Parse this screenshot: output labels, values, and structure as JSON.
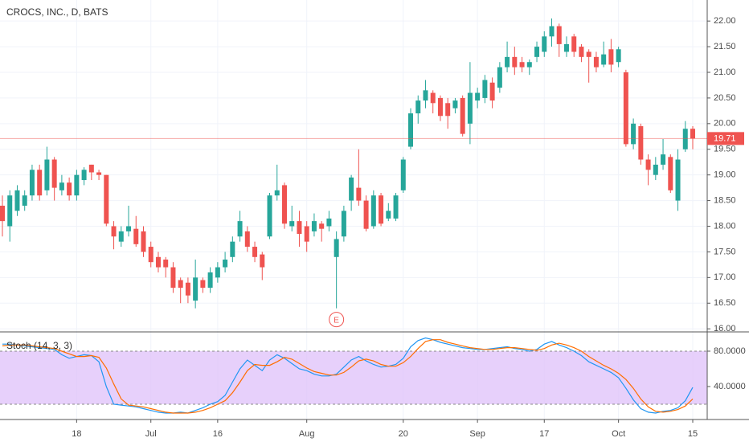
{
  "chart_data": [
    {
      "type": "candlestick",
      "title": "CROCS, INC., D, BATS",
      "categories": [
        null,
        null,
        null,
        null,
        null,
        null,
        null,
        null,
        null,
        null,
        "18",
        null,
        null,
        null,
        null,
        null,
        null,
        null,
        null,
        null,
        "Jul",
        null,
        null,
        null,
        null,
        null,
        null,
        null,
        null,
        "16",
        null,
        null,
        null,
        null,
        null,
        null,
        null,
        null,
        null,
        null,
        null,
        "Aug",
        null,
        null,
        null,
        null,
        null,
        null,
        null,
        null,
        null,
        null,
        null,
        null,
        "20",
        null,
        null,
        null,
        null,
        null,
        null,
        null,
        null,
        null,
        "Sep",
        null,
        null,
        null,
        null,
        null,
        null,
        null,
        null,
        "17",
        null,
        null,
        null,
        null,
        null,
        null,
        null,
        null,
        null,
        "Oct",
        null,
        null,
        null,
        null,
        null,
        null,
        null,
        null,
        null,
        "15"
      ],
      "open": [
        18.4,
        18.0,
        18.3,
        18.4,
        18.6,
        19.1,
        18.7,
        19.3,
        18.7,
        18.85,
        18.6,
        18.9,
        19.2,
        19.05,
        19.0,
        18.0,
        17.7,
        17.9,
        17.95,
        17.9,
        17.6,
        17.4,
        17.35,
        17.2,
        16.95,
        16.9,
        16.55,
        16.95,
        16.8,
        17.0,
        17.2,
        17.4,
        17.8,
        17.9,
        17.6,
        17.45,
        17.8,
        18.6,
        18.8,
        18.0,
        18.1,
        18.0,
        17.9,
        18.05,
        18.0,
        17.4,
        17.8,
        18.5,
        18.75,
        18.5,
        18.0,
        18.6,
        18.15,
        18.15,
        18.7,
        19.55,
        20.2,
        20.45,
        20.6,
        20.5,
        20.4,
        20.3,
        20.5,
        20.0,
        20.45,
        20.5,
        20.8,
        20.7,
        21.1,
        21.3,
        21.2,
        21.1,
        21.3,
        21.4,
        21.7,
        21.9,
        21.4,
        21.7,
        21.5,
        21.4,
        21.3,
        21.15,
        21.45,
        21.2,
        21.0,
        19.6,
        19.95,
        19.3,
        19.0,
        19.2,
        19.35,
        18.5,
        19.5,
        19.9
      ],
      "high": [
        18.6,
        18.7,
        18.8,
        18.7,
        19.2,
        19.2,
        19.55,
        19.35,
        19.0,
        18.95,
        19.1,
        19.15,
        19.2,
        19.1,
        19.0,
        18.1,
        18.0,
        18.4,
        18.2,
        18.0,
        17.7,
        17.5,
        17.4,
        17.3,
        17.0,
        17.0,
        17.35,
        17.0,
        17.2,
        17.3,
        17.5,
        17.8,
        18.3,
        18.0,
        17.7,
        17.5,
        18.65,
        19.2,
        18.85,
        18.4,
        18.3,
        18.1,
        18.25,
        18.1,
        18.3,
        17.9,
        18.4,
        19.0,
        19.5,
        18.6,
        18.7,
        18.65,
        18.45,
        18.65,
        19.35,
        20.3,
        20.55,
        20.85,
        20.65,
        20.55,
        20.5,
        20.5,
        20.55,
        21.2,
        20.7,
        20.95,
        20.9,
        21.2,
        21.6,
        21.5,
        21.3,
        21.25,
        21.6,
        21.8,
        22.05,
        21.95,
        21.7,
        21.75,
        21.55,
        21.45,
        21.4,
        21.6,
        21.65,
        21.5,
        21.05,
        20.1,
        20.0,
        19.4,
        19.35,
        19.7,
        19.4,
        19.5,
        20.05,
        19.95
      ],
      "low": [
        17.8,
        17.7,
        18.2,
        18.3,
        18.5,
        18.5,
        18.6,
        18.5,
        18.6,
        18.5,
        18.5,
        18.8,
        18.9,
        18.9,
        18.0,
        17.55,
        17.6,
        17.8,
        17.6,
        17.4,
        17.2,
        17.1,
        17.0,
        16.7,
        16.5,
        16.5,
        16.4,
        16.7,
        16.7,
        16.9,
        17.1,
        17.3,
        17.7,
        17.5,
        17.3,
        16.95,
        17.75,
        18.5,
        17.95,
        17.9,
        17.6,
        17.5,
        17.8,
        17.7,
        17.9,
        16.4,
        17.7,
        18.3,
        18.4,
        17.9,
        17.95,
        18.0,
        18.1,
        18.1,
        18.65,
        19.5,
        20.0,
        20.3,
        20.2,
        20.05,
        19.9,
        20.2,
        19.75,
        19.6,
        20.3,
        20.4,
        20.3,
        20.6,
        21.0,
        20.95,
        21.0,
        20.95,
        21.2,
        21.3,
        21.5,
        21.3,
        21.3,
        21.3,
        21.2,
        20.8,
        21.0,
        21.1,
        21.0,
        21.1,
        19.55,
        19.5,
        19.2,
        18.8,
        18.9,
        19.1,
        18.65,
        18.3,
        19.45,
        19.5
      ],
      "close": [
        18.1,
        18.6,
        18.7,
        18.6,
        19.1,
        18.6,
        19.3,
        18.75,
        18.85,
        18.6,
        19.0,
        19.1,
        19.05,
        19.0,
        18.05,
        17.8,
        17.9,
        18.0,
        17.65,
        17.5,
        17.3,
        17.2,
        17.2,
        16.8,
        16.8,
        16.65,
        17.0,
        16.8,
        17.1,
        17.2,
        17.35,
        17.7,
        18.1,
        17.6,
        17.4,
        17.2,
        18.6,
        18.7,
        18.05,
        18.1,
        17.85,
        17.7,
        18.1,
        17.95,
        18.15,
        17.75,
        18.3,
        18.95,
        18.5,
        17.95,
        18.6,
        18.05,
        18.3,
        18.6,
        19.3,
        20.2,
        20.45,
        20.65,
        20.4,
        20.15,
        20.15,
        20.45,
        19.8,
        20.6,
        20.6,
        20.85,
        20.45,
        21.1,
        21.3,
        21.1,
        21.1,
        21.2,
        21.5,
        21.7,
        21.9,
        21.55,
        21.55,
        21.4,
        21.3,
        21.3,
        21.1,
        21.35,
        21.15,
        21.45,
        19.6,
        20.0,
        19.3,
        19.1,
        19.2,
        19.4,
        18.7,
        19.3,
        19.9,
        19.71
      ],
      "up_color": "#26a69a",
      "down_color": "#ef5350",
      "last_price": 19.71,
      "events": [
        {
          "label": "E",
          "index": 45
        }
      ],
      "ylim": [
        15.94,
        22.41
      ],
      "yticks": [
        {
          "value": 16,
          "label": "16.00"
        },
        {
          "value": 16.5,
          "label": "16.50"
        },
        {
          "value": 17,
          "label": "17.00"
        },
        {
          "value": 17.5,
          "label": "17.50"
        },
        {
          "value": 18,
          "label": "18.00"
        },
        {
          "value": 18.5,
          "label": "18.50"
        },
        {
          "value": 19,
          "label": "19.00"
        },
        {
          "value": 19.5,
          "label": "19.50"
        },
        {
          "value": 20,
          "label": "20.00"
        },
        {
          "value": 20.5,
          "label": "20.50"
        },
        {
          "value": 21,
          "label": "21.00"
        },
        {
          "value": 21.5,
          "label": "21.50"
        },
        {
          "value": 22,
          "label": "22.00"
        }
      ],
      "grid": true
    },
    {
      "type": "line",
      "title": "Stoch (14, 3, 3)",
      "series": [
        {
          "color": "#2196f3",
          "values": [
            88,
            88,
            87,
            86,
            85,
            84,
            83,
            82,
            76,
            72,
            74,
            76,
            75,
            68,
            40,
            20,
            19,
            18,
            17,
            15,
            13,
            11,
            10,
            10,
            11,
            10,
            13,
            16,
            20,
            23,
            30,
            45,
            60,
            70,
            64,
            58,
            70,
            76,
            72,
            66,
            60,
            58,
            54,
            52,
            52,
            54,
            62,
            70,
            74,
            69,
            65,
            62,
            63,
            65,
            72,
            85,
            92,
            95,
            93,
            90,
            88,
            86,
            84,
            83,
            82,
            82,
            83,
            84,
            85,
            83,
            82,
            80,
            82,
            88,
            91,
            87,
            84,
            80,
            75,
            68,
            64,
            60,
            56,
            50,
            38,
            25,
            15,
            11,
            10,
            12,
            13,
            16,
            24,
            39
          ]
        },
        {
          "color": "#ff6d00",
          "values": [
            86,
            87,
            87,
            87,
            86,
            85,
            84,
            83,
            80,
            77,
            74,
            74,
            75,
            73,
            61,
            43,
            26,
            19,
            18,
            17,
            15,
            13,
            11,
            10,
            10,
            10,
            11,
            13,
            16,
            20,
            24,
            33,
            45,
            58,
            65,
            64,
            64,
            68,
            73,
            71,
            66,
            61,
            57,
            55,
            53,
            53,
            56,
            62,
            69,
            71,
            69,
            65,
            63,
            63,
            67,
            74,
            83,
            91,
            93,
            93,
            90,
            88,
            86,
            84,
            83,
            82,
            82,
            83,
            84,
            84,
            83,
            82,
            81,
            83,
            87,
            89,
            87,
            84,
            80,
            74,
            69,
            64,
            60,
            55,
            48,
            38,
            26,
            17,
            12,
            11,
            12,
            14,
            18,
            26
          ]
        }
      ],
      "band": [
        20,
        80
      ],
      "band_color": "#e1c4fa",
      "ylim": [
        2.7,
        101.8
      ],
      "yticks": [
        {
          "value": 80,
          "label": "80.0000"
        },
        {
          "value": 40,
          "label": "40.0000"
        }
      ]
    }
  ]
}
